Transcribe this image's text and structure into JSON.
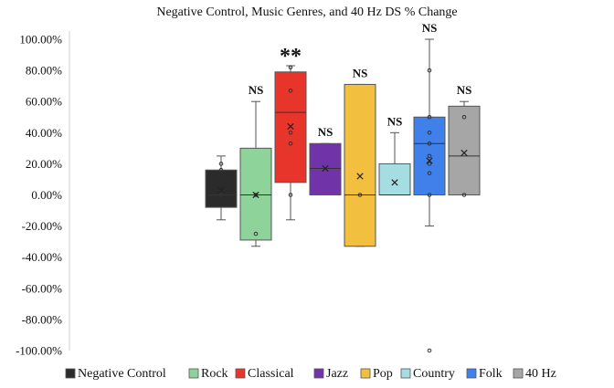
{
  "chart_data": {
    "type": "box",
    "title": "Negative Control, Music Genres, and 40 Hz DS % Change",
    "xlabel": "",
    "ylabel": "",
    "ylim": [
      -100,
      100
    ],
    "yticks": [
      100,
      80,
      60,
      40,
      20,
      0,
      -20,
      -40,
      -60,
      -80,
      -100
    ],
    "ytick_labels": [
      "100.00%",
      "80.00%",
      "60.00%",
      "40.00%",
      "20.00%",
      "0.00%",
      "-20.00%",
      "-40.00%",
      "-60.00%",
      "-80.00%",
      "-100.00%"
    ],
    "grid": false,
    "legend_position": "bottom",
    "series": [
      {
        "name": "Negative Control",
        "color": "#2b2b2b",
        "min": -16,
        "q1": -8,
        "median": 0,
        "q3": 16,
        "max": 25,
        "mean": 3,
        "points": [
          20,
          16,
          2,
          0
        ],
        "sig": ""
      },
      {
        "name": "Rock",
        "color": "#8ed39a",
        "min": -33,
        "q1": -29,
        "median": 0,
        "q3": 30,
        "max": 60,
        "mean": 0,
        "points": [
          -25,
          0
        ],
        "sig": "NS"
      },
      {
        "name": "Classical",
        "color": "#e8352b",
        "min": -16,
        "q1": 8,
        "median": 53,
        "q3": 79,
        "max": 83,
        "mean": 44,
        "points": [
          82,
          67,
          40,
          33,
          0
        ],
        "sig": "**"
      },
      {
        "name": "Jazz",
        "color": "#7034a8",
        "min": 0,
        "q1": 0,
        "median": 17,
        "q3": 33,
        "max": 33,
        "mean": 17,
        "points": [],
        "sig": "NS"
      },
      {
        "name": "Pop",
        "color": "#f3bf3f",
        "min": -33,
        "q1": -33,
        "median": 0,
        "q3": 71,
        "max": 71,
        "mean": 12,
        "points": [
          0
        ],
        "sig": "NS"
      },
      {
        "name": "Country",
        "color": "#a4dde2",
        "min": 0,
        "q1": 0,
        "median": 0,
        "q3": 20,
        "max": 40,
        "mean": 8,
        "points": [],
        "sig": "NS"
      },
      {
        "name": "Folk",
        "color": "#3f80ea",
        "min": -20,
        "q1": 0,
        "median": 33,
        "q3": 50,
        "max": 100,
        "mean": 22,
        "points": [
          80,
          50,
          40,
          33,
          25,
          20,
          14,
          0,
          -100
        ],
        "sig": "NS"
      },
      {
        "name": "40 Hz",
        "color": "#a6a6a6",
        "min": 0,
        "q1": 0,
        "median": 25,
        "q3": 57,
        "max": 60,
        "mean": 27,
        "points": [
          50,
          0
        ],
        "sig": "NS"
      }
    ]
  }
}
